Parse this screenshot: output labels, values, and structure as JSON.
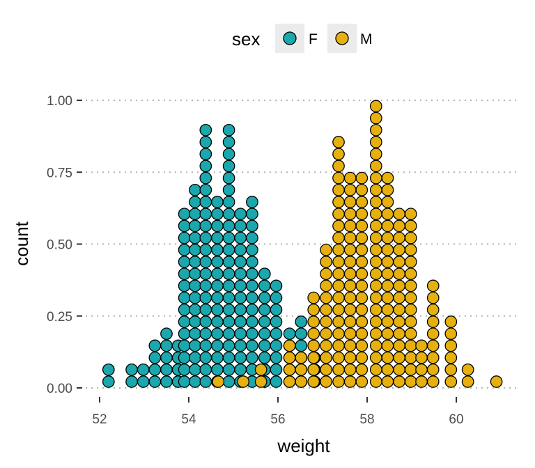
{
  "chart_data": {
    "type": "dotplot",
    "xlabel": "weight",
    "ylabel": "count",
    "xlim": [
      51.6,
      61.4
    ],
    "ylim": [
      0,
      1
    ],
    "x_ticks": [
      52,
      54,
      56,
      58,
      60
    ],
    "y_ticks": [
      0,
      0.25,
      0.5,
      0.75,
      1
    ],
    "y_tick_labels": [
      "0.00",
      "0.25",
      "0.50",
      "0.75",
      "1.00"
    ],
    "grid": "horizontal dotted",
    "legend": {
      "position": "top",
      "title": "sex",
      "entries": [
        {
          "label": "F",
          "color": "#1aa7ad"
        },
        {
          "label": "M",
          "color": "#e6b10e"
        }
      ]
    },
    "series": [
      {
        "name": "F",
        "color": "#1aa7ad",
        "stacks": [
          {
            "x": 52.2,
            "count": 2
          },
          {
            "x": 52.72,
            "count": 2
          },
          {
            "x": 52.98,
            "count": 2
          },
          {
            "x": 53.24,
            "count": 4
          },
          {
            "x": 53.5,
            "count": 5
          },
          {
            "x": 53.76,
            "count": 4
          },
          {
            "x": 53.9,
            "count": 15
          },
          {
            "x": 54.14,
            "count": 17
          },
          {
            "x": 54.38,
            "count": 22
          },
          {
            "x": 54.64,
            "count": 16
          },
          {
            "x": 54.9,
            "count": 22
          },
          {
            "x": 55.16,
            "count": 15
          },
          {
            "x": 55.42,
            "count": 16
          },
          {
            "x": 55.7,
            "count": 10
          },
          {
            "x": 55.96,
            "count": 9
          },
          {
            "x": 56.26,
            "count": 5
          },
          {
            "x": 56.52,
            "count": 6
          },
          {
            "x": 56.82,
            "count": 3
          }
        ]
      },
      {
        "name": "M",
        "color": "#e6b10e",
        "stacks": [
          {
            "x": 54.66,
            "count": 1
          },
          {
            "x": 55.22,
            "count": 1
          },
          {
            "x": 55.62,
            "count": 2
          },
          {
            "x": 56.26,
            "count": 4
          },
          {
            "x": 56.52,
            "count": 3
          },
          {
            "x": 56.8,
            "count": 8
          },
          {
            "x": 57.08,
            "count": 12
          },
          {
            "x": 57.36,
            "count": 21
          },
          {
            "x": 57.62,
            "count": 18
          },
          {
            "x": 57.88,
            "count": 18
          },
          {
            "x": 58.2,
            "count": 24
          },
          {
            "x": 58.46,
            "count": 18
          },
          {
            "x": 58.72,
            "count": 15
          },
          {
            "x": 58.98,
            "count": 15
          },
          {
            "x": 59.22,
            "count": 4
          },
          {
            "x": 59.48,
            "count": 9
          },
          {
            "x": 59.88,
            "count": 6
          },
          {
            "x": 60.26,
            "count": 2
          },
          {
            "x": 60.9,
            "count": 1
          }
        ]
      }
    ]
  }
}
